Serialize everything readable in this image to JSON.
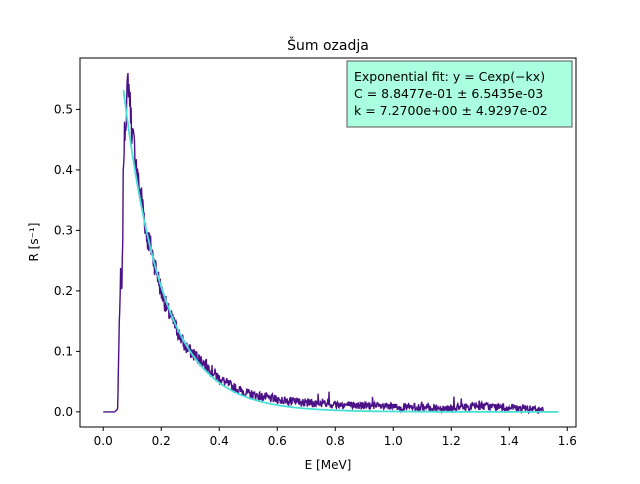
{
  "chart_data": {
    "type": "line",
    "title": "Šum ozadja",
    "xlabel": "E [MeV]",
    "ylabel": "R [s⁻¹]",
    "xlim": [
      -0.08,
      1.63
    ],
    "ylim": [
      -0.025,
      0.585
    ],
    "xticks": [
      "0.0",
      "0.2",
      "0.4",
      "0.6",
      "0.8",
      "1.0",
      "1.2",
      "1.4",
      "1.6"
    ],
    "yticks": [
      "0.0",
      "0.1",
      "0.2",
      "0.3",
      "0.4",
      "0.5"
    ],
    "grid": false,
    "annotation": {
      "line1": "Exponential fit: y = Cexp(−kx)",
      "line2": "C = 8.8477e-01 ± 6.5435e-03",
      "line3": "k = 7.2700e+00 ± 4.9297e-02",
      "background": "#aaffe0",
      "placement": "top-right"
    },
    "series": [
      {
        "color": "#4b1187",
        "x": [
          0.0,
          0.02,
          0.04,
          0.05,
          0.055,
          0.06,
          0.065,
          0.07,
          0.075,
          0.08,
          0.085,
          0.09,
          0.1,
          0.11,
          0.12,
          0.13,
          0.14,
          0.15,
          0.16,
          0.18,
          0.2,
          0.22,
          0.25,
          0.28,
          0.3,
          0.35,
          0.4,
          0.45,
          0.5,
          0.55,
          0.6,
          0.7,
          0.8,
          0.9,
          1.0,
          1.1,
          1.2,
          1.3,
          1.35,
          1.4,
          1.45,
          1.5,
          1.52
        ],
        "y": [
          0.0,
          0.0,
          0.0,
          0.005,
          0.14,
          0.22,
          0.19,
          0.42,
          0.47,
          0.5,
          0.55,
          0.53,
          0.46,
          0.43,
          0.38,
          0.36,
          0.33,
          0.29,
          0.28,
          0.24,
          0.2,
          0.17,
          0.14,
          0.11,
          0.1,
          0.08,
          0.055,
          0.04,
          0.03,
          0.025,
          0.02,
          0.015,
          0.012,
          0.01,
          0.008,
          0.007,
          0.006,
          0.01,
          0.008,
          0.006,
          0.005,
          0.003,
          0.002
        ],
        "noise": 0.025
      },
      {
        "color": "#48e0d6",
        "fit": {
          "C": 0.88477,
          "k": 7.27,
          "x_range": [
            0.07,
            1.57
          ]
        }
      }
    ]
  }
}
